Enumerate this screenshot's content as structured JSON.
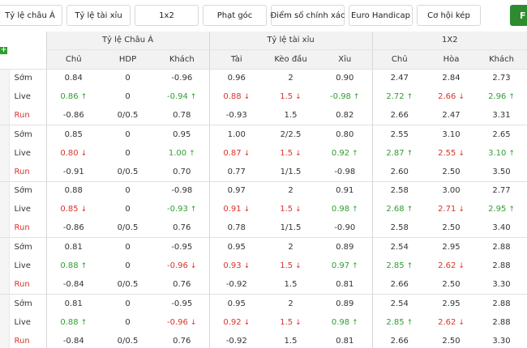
{
  "tabs": [
    {
      "label": "Tỷ lệ châu Á",
      "active": true
    },
    {
      "label": "Tỷ lệ tài xỉu"
    },
    {
      "label": "1x2"
    },
    {
      "label": "Phạt góc"
    },
    {
      "label": "Điểm số chính xác"
    },
    {
      "label": "Euro Handicap"
    },
    {
      "label": "Cơ hội kép"
    },
    {
      "label": "F"
    }
  ],
  "colors": {
    "up": "#2f9e2f",
    "down": "#d9342b",
    "header_bg": "#f2f2f2",
    "accent": "#2e8b2e"
  },
  "expand_icon": "+",
  "groups": [
    "Tỷ lệ Châu Á",
    "Tỷ lệ tài xỉu",
    "1X2"
  ],
  "columns": [
    "Chủ",
    "HDP",
    "Khách",
    "Tài",
    "Kèo đầu",
    "Xỉu",
    "Chủ",
    "Hòa",
    "Khách"
  ],
  "rows": [
    {
      "label": "Sớm",
      "type": "early",
      "cells": [
        {
          "v": "0.84"
        },
        {
          "v": "0"
        },
        {
          "v": "-0.96"
        },
        {
          "v": "0.96"
        },
        {
          "v": "2"
        },
        {
          "v": "0.90"
        },
        {
          "v": "2.47"
        },
        {
          "v": "2.84"
        },
        {
          "v": "2.73"
        }
      ]
    },
    {
      "label": "Live",
      "type": "live",
      "cells": [
        {
          "v": "0.86",
          "d": "up"
        },
        {
          "v": "0"
        },
        {
          "v": "-0.94",
          "d": "up"
        },
        {
          "v": "0.88",
          "d": "down"
        },
        {
          "v": "1.5",
          "d": "down"
        },
        {
          "v": "-0.98",
          "d": "up"
        },
        {
          "v": "2.72",
          "d": "up"
        },
        {
          "v": "2.66",
          "d": "down"
        },
        {
          "v": "2.96",
          "d": "up"
        }
      ]
    },
    {
      "label": "Run",
      "type": "run",
      "cells": [
        {
          "v": "-0.86"
        },
        {
          "v": "0/0.5"
        },
        {
          "v": "0.78"
        },
        {
          "v": "-0.93"
        },
        {
          "v": "1.5"
        },
        {
          "v": "0.82"
        },
        {
          "v": "2.66"
        },
        {
          "v": "2.47"
        },
        {
          "v": "3.31"
        }
      ]
    },
    {
      "label": "Sớm",
      "type": "early",
      "cells": [
        {
          "v": "0.85"
        },
        {
          "v": "0"
        },
        {
          "v": "0.95"
        },
        {
          "v": "1.00"
        },
        {
          "v": "2/2.5"
        },
        {
          "v": "0.80"
        },
        {
          "v": "2.55"
        },
        {
          "v": "3.10"
        },
        {
          "v": "2.65"
        }
      ]
    },
    {
      "label": "Live",
      "type": "live",
      "cells": [
        {
          "v": "0.80",
          "d": "down"
        },
        {
          "v": "0"
        },
        {
          "v": "1.00",
          "d": "up"
        },
        {
          "v": "0.87",
          "d": "down"
        },
        {
          "v": "1.5",
          "d": "down"
        },
        {
          "v": "0.92",
          "d": "up"
        },
        {
          "v": "2.87",
          "d": "up"
        },
        {
          "v": "2.55",
          "d": "down"
        },
        {
          "v": "3.10",
          "d": "up"
        }
      ]
    },
    {
      "label": "Run",
      "type": "run",
      "cells": [
        {
          "v": "-0.91"
        },
        {
          "v": "0/0.5"
        },
        {
          "v": "0.70"
        },
        {
          "v": "0.77"
        },
        {
          "v": "1/1.5"
        },
        {
          "v": "-0.98"
        },
        {
          "v": "2.60"
        },
        {
          "v": "2.50"
        },
        {
          "v": "3.50"
        }
      ]
    },
    {
      "label": "Sớm",
      "type": "early",
      "cells": [
        {
          "v": "0.88"
        },
        {
          "v": "0"
        },
        {
          "v": "-0.98"
        },
        {
          "v": "0.97"
        },
        {
          "v": "2"
        },
        {
          "v": "0.91"
        },
        {
          "v": "2.58"
        },
        {
          "v": "3.00"
        },
        {
          "v": "2.77"
        }
      ]
    },
    {
      "label": "Live",
      "type": "live",
      "cells": [
        {
          "v": "0.85",
          "d": "down"
        },
        {
          "v": "0"
        },
        {
          "v": "-0.93",
          "d": "up"
        },
        {
          "v": "0.91",
          "d": "down"
        },
        {
          "v": "1.5",
          "d": "down"
        },
        {
          "v": "0.98",
          "d": "up"
        },
        {
          "v": "2.68",
          "d": "up"
        },
        {
          "v": "2.71",
          "d": "down"
        },
        {
          "v": "2.95",
          "d": "up"
        }
      ]
    },
    {
      "label": "Run",
      "type": "run",
      "cells": [
        {
          "v": "-0.86"
        },
        {
          "v": "0/0.5"
        },
        {
          "v": "0.76"
        },
        {
          "v": "0.78"
        },
        {
          "v": "1/1.5"
        },
        {
          "v": "-0.90"
        },
        {
          "v": "2.58"
        },
        {
          "v": "2.50"
        },
        {
          "v": "3.40"
        }
      ]
    },
    {
      "label": "Sớm",
      "type": "early",
      "cells": [
        {
          "v": "0.81"
        },
        {
          "v": "0"
        },
        {
          "v": "-0.95"
        },
        {
          "v": "0.95"
        },
        {
          "v": "2"
        },
        {
          "v": "0.89"
        },
        {
          "v": "2.54"
        },
        {
          "v": "2.95"
        },
        {
          "v": "2.88"
        }
      ]
    },
    {
      "label": "Live",
      "type": "live",
      "cells": [
        {
          "v": "0.88",
          "d": "up"
        },
        {
          "v": "0"
        },
        {
          "v": "-0.96",
          "d": "down"
        },
        {
          "v": "0.93",
          "d": "down"
        },
        {
          "v": "1.5",
          "d": "down"
        },
        {
          "v": "0.97",
          "d": "up"
        },
        {
          "v": "2.85",
          "d": "up"
        },
        {
          "v": "2.62",
          "d": "down"
        },
        {
          "v": "2.88"
        }
      ]
    },
    {
      "label": "Run",
      "type": "run",
      "cells": [
        {
          "v": "-0.84"
        },
        {
          "v": "0/0.5"
        },
        {
          "v": "0.76"
        },
        {
          "v": "-0.92"
        },
        {
          "v": "1.5"
        },
        {
          "v": "0.81"
        },
        {
          "v": "2.66"
        },
        {
          "v": "2.50"
        },
        {
          "v": "3.30"
        }
      ]
    },
    {
      "label": "Sớm",
      "type": "early",
      "cells": [
        {
          "v": "0.81"
        },
        {
          "v": "0"
        },
        {
          "v": "-0.95"
        },
        {
          "v": "0.95"
        },
        {
          "v": "2"
        },
        {
          "v": "0.89"
        },
        {
          "v": "2.54"
        },
        {
          "v": "2.95"
        },
        {
          "v": "2.88"
        }
      ]
    },
    {
      "label": "Live",
      "type": "live",
      "cells": [
        {
          "v": "0.88",
          "d": "up"
        },
        {
          "v": "0"
        },
        {
          "v": "-0.96",
          "d": "down"
        },
        {
          "v": "0.92",
          "d": "down"
        },
        {
          "v": "1.5",
          "d": "down"
        },
        {
          "v": "0.98",
          "d": "up"
        },
        {
          "v": "2.85",
          "d": "up"
        },
        {
          "v": "2.62",
          "d": "down"
        },
        {
          "v": "2.88"
        }
      ]
    },
    {
      "label": "Run",
      "type": "run",
      "cells": [
        {
          "v": "-0.84"
        },
        {
          "v": "0/0.5"
        },
        {
          "v": "0.76"
        },
        {
          "v": "-0.92"
        },
        {
          "v": "1.5"
        },
        {
          "v": "0.81"
        },
        {
          "v": "2.66"
        },
        {
          "v": "2.50"
        },
        {
          "v": "3.30"
        }
      ]
    }
  ]
}
